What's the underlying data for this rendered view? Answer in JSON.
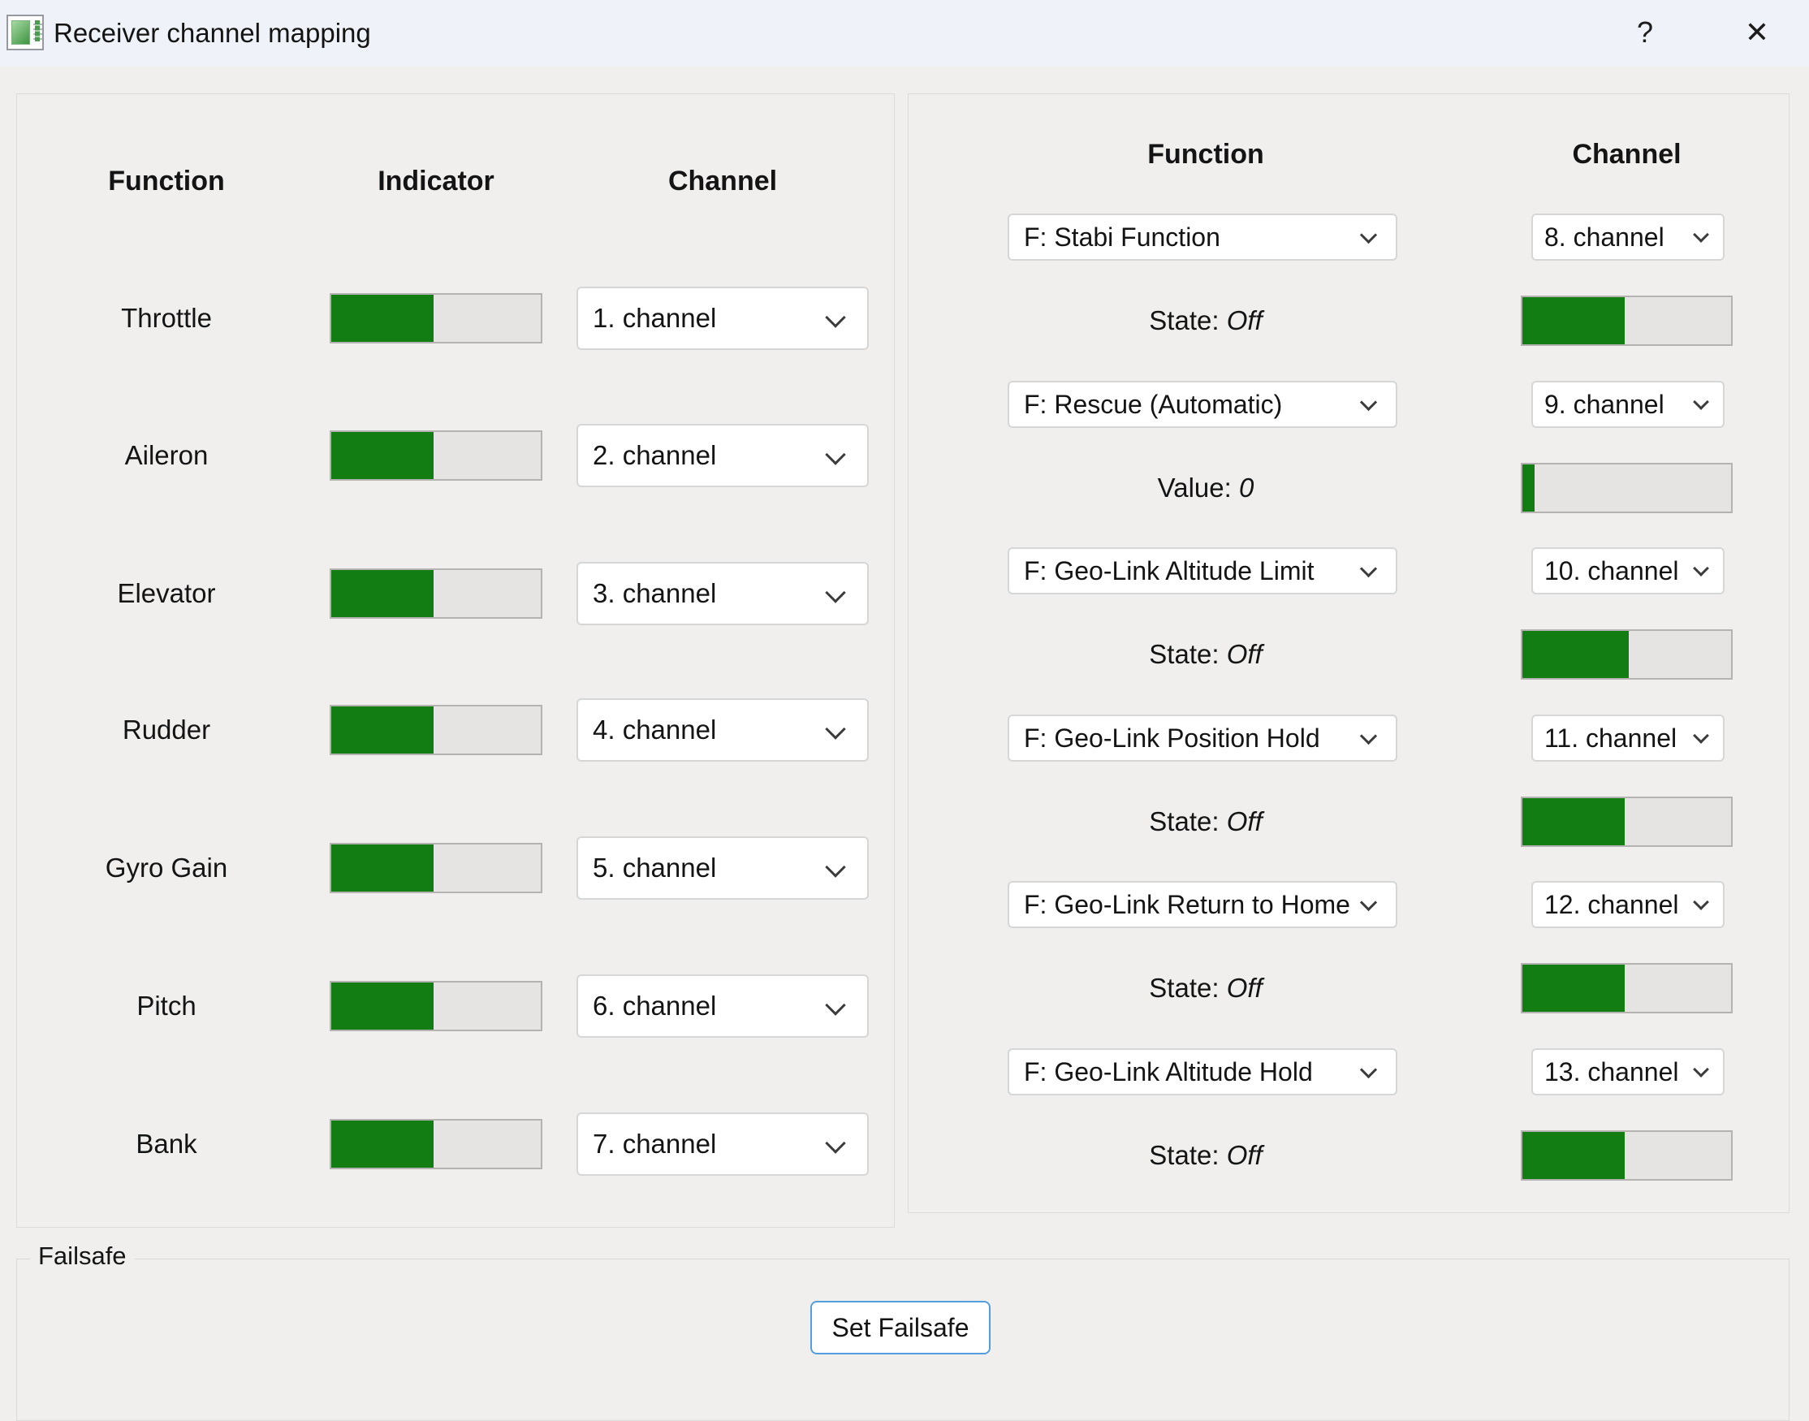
{
  "window": {
    "title": "Receiver channel mapping",
    "help_label": "?",
    "close_label": "✕"
  },
  "left_panel": {
    "headers": {
      "function": "Function",
      "indicator": "Indicator",
      "channel": "Channel"
    },
    "rows": [
      {
        "function": "Throttle",
        "indicator_pct": 49,
        "channel": "1. channel"
      },
      {
        "function": "Aileron",
        "indicator_pct": 49,
        "channel": "2. channel"
      },
      {
        "function": "Elevator",
        "indicator_pct": 49,
        "channel": "3. channel"
      },
      {
        "function": "Rudder",
        "indicator_pct": 49,
        "channel": "4. channel"
      },
      {
        "function": "Gyro Gain",
        "indicator_pct": 49,
        "channel": "5. channel"
      },
      {
        "function": "Pitch",
        "indicator_pct": 49,
        "channel": "6. channel"
      },
      {
        "function": "Bank",
        "indicator_pct": 49,
        "channel": "7. channel"
      }
    ]
  },
  "right_panel": {
    "headers": {
      "function": "Function",
      "channel": "Channel"
    },
    "rows": [
      {
        "function": "F: Stabi Function",
        "channel": "8. channel",
        "value_label": "State:",
        "value": "Off",
        "indicator_pct": 49
      },
      {
        "function": "F: Rescue (Automatic)",
        "channel": "9. channel",
        "value_label": "Value:",
        "value": "0",
        "indicator_pct": 6
      },
      {
        "function": "F: Geo-Link Altitude Limit",
        "channel": "10. channel",
        "value_label": "State:",
        "value": "Off",
        "indicator_pct": 51
      },
      {
        "function": "F: Geo-Link Position Hold",
        "channel": "11. channel",
        "value_label": "State:",
        "value": "Off",
        "indicator_pct": 49
      },
      {
        "function": "F: Geo-Link Return to Home",
        "channel": "12. channel",
        "value_label": "State:",
        "value": "Off",
        "indicator_pct": 49
      },
      {
        "function": "F: Geo-Link Altitude Hold",
        "channel": "13. channel",
        "value_label": "State:",
        "value": "Off",
        "indicator_pct": 49
      }
    ]
  },
  "failsafe": {
    "group_label": "Failsafe",
    "button_label": "Set Failsafe"
  },
  "colors": {
    "indicator_green": "#127d12",
    "indicator_track": "#e5e4e3",
    "accent_blue": "#549ee0",
    "titlebar_bg": "#eff3f9",
    "window_bg": "#f0efee"
  }
}
